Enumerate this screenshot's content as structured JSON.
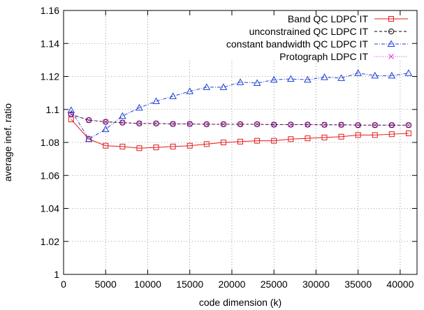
{
  "chart_data": {
    "type": "line",
    "xlabel": "code dimension (k)",
    "ylabel": "average inef. ratio",
    "xlim": [
      0,
      42000
    ],
    "ylim": [
      1.0,
      1.16
    ],
    "xticks": [
      0,
      5000,
      10000,
      15000,
      20000,
      25000,
      30000,
      35000,
      40000
    ],
    "xtick_labels": [
      "0",
      "5000",
      "10000",
      "15000",
      "20000",
      "25000",
      "30000",
      "35000",
      "40000"
    ],
    "yticks": [
      1.0,
      1.02,
      1.04,
      1.06,
      1.08,
      1.1,
      1.12,
      1.14,
      1.16
    ],
    "ytick_labels": [
      "1",
      "1.02",
      "1.04",
      "1.06",
      "1.08",
      "1.1",
      "1.12",
      "1.14",
      "1.16"
    ],
    "grid": true,
    "legend_position": "top-right",
    "series": [
      {
        "name": "Band QC LDPC IT",
        "color": "#e41a1c",
        "dash": "solid",
        "marker": "square",
        "x": [
          900,
          3000,
          5000,
          7000,
          9000,
          11000,
          13000,
          15000,
          17000,
          19000,
          21000,
          23000,
          25000,
          27000,
          29000,
          31000,
          33000,
          35000,
          37000,
          39000,
          41000
        ],
        "y": [
          1.094,
          1.082,
          1.078,
          1.0775,
          1.0765,
          1.077,
          1.0775,
          1.078,
          1.079,
          1.08,
          1.0805,
          1.081,
          1.081,
          1.082,
          1.0825,
          1.083,
          1.0835,
          1.0845,
          1.0845,
          1.085,
          1.0855
        ]
      },
      {
        "name": "unconstrained QC LDPC IT",
        "color": "#000000",
        "dash": "dashed",
        "marker": "circle",
        "x": [
          900,
          3000,
          5000,
          7000,
          9000,
          11000,
          13000,
          15000,
          17000,
          19000,
          21000,
          23000,
          25000,
          27000,
          29000,
          31000,
          33000,
          35000,
          37000,
          39000,
          41000
        ],
        "y": [
          1.097,
          1.0935,
          1.0925,
          1.092,
          1.0915,
          1.0915,
          1.0912,
          1.0912,
          1.091,
          1.091,
          1.091,
          1.091,
          1.0908,
          1.0908,
          1.0908,
          1.0907,
          1.0907,
          1.0905,
          1.0905,
          1.0905,
          1.0905
        ]
      },
      {
        "name": "constant bandwidth QC LDPC IT",
        "color": "#1f3fd6",
        "dash": "dashdot",
        "marker": "triangle",
        "x": [
          900,
          3000,
          5000,
          7000,
          9000,
          11000,
          13000,
          15000,
          17000,
          19000,
          21000,
          23000,
          25000,
          27000,
          29000,
          31000,
          33000,
          35000,
          37000,
          39000,
          41000
        ],
        "y": [
          1.0995,
          1.082,
          1.088,
          1.096,
          1.101,
          1.105,
          1.108,
          1.111,
          1.1135,
          1.1135,
          1.1165,
          1.116,
          1.118,
          1.1185,
          1.118,
          1.1195,
          1.119,
          1.122,
          1.1205,
          1.1205,
          1.122
        ]
      },
      {
        "name": "Protograph LDPC IT",
        "color": "#d62ad6",
        "dash": "dotted",
        "marker": "cross",
        "x": [
          900,
          3000,
          5000,
          7000,
          9000,
          11000,
          13000,
          15000,
          17000,
          19000,
          21000,
          23000,
          25000,
          27000,
          29000,
          31000,
          33000,
          35000,
          37000,
          39000,
          41000
        ],
        "y": [
          1.097,
          1.0935,
          1.0925,
          1.092,
          1.0915,
          1.0915,
          1.0912,
          1.0912,
          1.091,
          1.091,
          1.091,
          1.091,
          1.0908,
          1.0908,
          1.0908,
          1.0907,
          1.0907,
          1.0905,
          1.0905,
          1.0905,
          1.0905
        ]
      }
    ]
  }
}
